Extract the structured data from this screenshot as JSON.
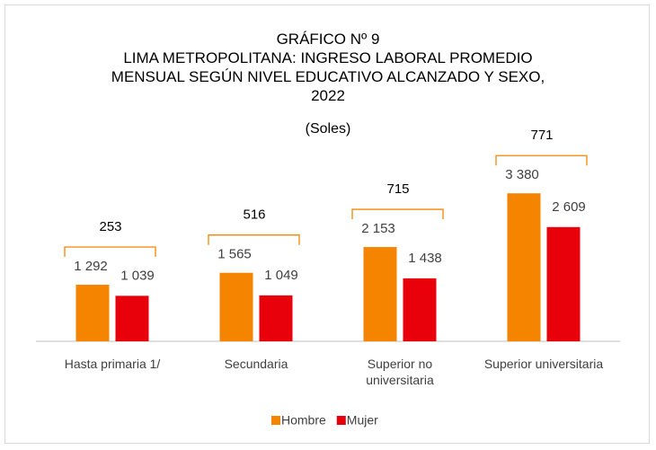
{
  "chart_data": {
    "type": "bar",
    "title": "GRÁFICO Nº 9",
    "subtitle": "LIMA METROPOLITANA: INGRESO LABORAL PROMEDIO MENSUAL SEGÚN NIVEL EDUCATIVO ALCANZADO Y SEXO, 2022",
    "unit_label": "(Soles)",
    "categories": [
      "Hasta primaria 1/",
      "Secundaria",
      "Superior no universitaria",
      "Superior universitaria"
    ],
    "series": [
      {
        "name": "Hombre",
        "color": "#f58500",
        "values": [
          1292,
          1565,
          2153,
          3380
        ],
        "value_labels": [
          "1 292",
          "1 565",
          "2 153",
          "3 380"
        ]
      },
      {
        "name": "Mujer",
        "color": "#e8000b",
        "values": [
          1039,
          1049,
          1438,
          2609
        ],
        "value_labels": [
          "1 039",
          "1 049",
          "1 438",
          "2 609"
        ]
      }
    ],
    "differences": {
      "color": "#f58500",
      "values": [
        253,
        516,
        715,
        771
      ]
    },
    "ylim": [
      0,
      4000
    ],
    "legend": "bottom"
  }
}
